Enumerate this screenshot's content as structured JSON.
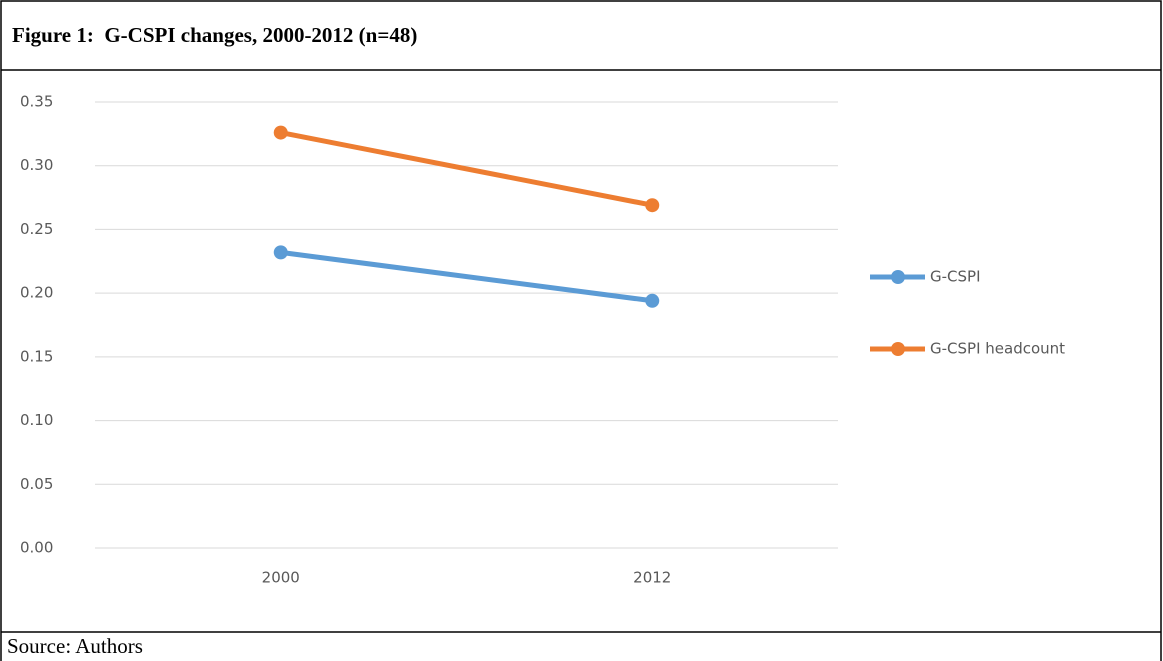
{
  "chart_data": {
    "type": "line",
    "title": "Figure 1:  G-CSPI changes, 2000-2012 (n=48)",
    "source": "Source: Authors",
    "categories": [
      "2000",
      "2012"
    ],
    "series": [
      {
        "name": "G-CSPI",
        "color": "#5b9bd5",
        "values": [
          0.232,
          0.194
        ]
      },
      {
        "name": "G-CSPI headcount",
        "color": "#ed7d31",
        "values": [
          0.326,
          0.269
        ]
      }
    ],
    "ylim": [
      0,
      0.35
    ],
    "yticks": [
      {
        "value": 0,
        "label": "0.00"
      },
      {
        "value": 0.05,
        "label": "0.05"
      },
      {
        "value": 0.1,
        "label": "0.10"
      },
      {
        "value": 0.15,
        "label": "0.15"
      },
      {
        "value": 0.2,
        "label": "0.20"
      },
      {
        "value": 0.25,
        "label": "0.25"
      },
      {
        "value": 0.3,
        "label": "0.30"
      },
      {
        "value": 0.35,
        "label": "0.35"
      }
    ],
    "grid": true,
    "legend": "right"
  }
}
